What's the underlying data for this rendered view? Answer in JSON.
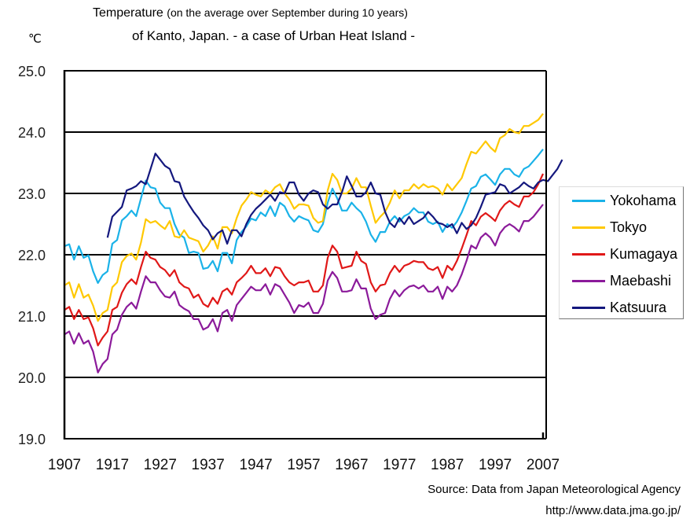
{
  "chart_data": {
    "type": "line",
    "title_main": "Temperature",
    "title_paren": "(on the average over September during 10 years)",
    "title_line2": "of Kanto, Japan. - a case of Urban Heat Island -",
    "ylabel": "℃",
    "xlabel": "",
    "ylim": [
      19.0,
      25.0
    ],
    "xlim": [
      1907,
      2007
    ],
    "yticks": [
      "19.0",
      "20.0",
      "21.0",
      "22.0",
      "23.0",
      "24.0",
      "25.0"
    ],
    "xticks": [
      "1907",
      "1917",
      "1927",
      "1937",
      "1947",
      "1957",
      "1967",
      "1977",
      "1987",
      "1997",
      "2007"
    ],
    "grid": "horizontal",
    "legend_position": "right",
    "source": "Source: Data from Japan Meteorological Agency",
    "url": "http://www.data.jma.go.jp/",
    "series": [
      {
        "name": "Yokohama",
        "color": "#1ab2e8",
        "start_year": 1907,
        "values": [
          22.14,
          22.17,
          21.92,
          22.14,
          21.95,
          21.99,
          21.73,
          21.54,
          21.67,
          21.73,
          22.18,
          22.24,
          22.56,
          22.63,
          22.72,
          22.63,
          22.92,
          23.21,
          23.1,
          23.08,
          22.85,
          22.76,
          22.76,
          22.5,
          22.33,
          22.28,
          22.03,
          22.05,
          22.03,
          21.77,
          21.79,
          21.9,
          21.73,
          22.03,
          22.03,
          21.86,
          22.24,
          22.37,
          22.46,
          22.59,
          22.56,
          22.69,
          22.63,
          22.79,
          22.63,
          22.85,
          22.79,
          22.63,
          22.54,
          22.63,
          22.59,
          22.56,
          22.4,
          22.37,
          22.5,
          22.85,
          23.08,
          22.92,
          22.72,
          22.72,
          22.85,
          22.76,
          22.69,
          22.54,
          22.33,
          22.21,
          22.37,
          22.37,
          22.54,
          22.63,
          22.54,
          22.63,
          22.67,
          22.76,
          22.69,
          22.69,
          22.54,
          22.5,
          22.54,
          22.37,
          22.5,
          22.44,
          22.54,
          22.69,
          22.88,
          23.08,
          23.12,
          23.27,
          23.31,
          23.23,
          23.14,
          23.31,
          23.4,
          23.4,
          23.31,
          23.27,
          23.4,
          23.44,
          23.53,
          23.62,
          23.72
        ]
      },
      {
        "name": "Tokyo",
        "color": "#ffc800",
        "start_year": 1907,
        "values": [
          21.5,
          21.55,
          21.3,
          21.52,
          21.3,
          21.35,
          21.17,
          20.92,
          21.05,
          21.1,
          21.47,
          21.55,
          21.88,
          21.98,
          22.02,
          21.92,
          22.2,
          22.58,
          22.52,
          22.55,
          22.48,
          22.42,
          22.55,
          22.3,
          22.28,
          22.4,
          22.28,
          22.25,
          22.22,
          22.05,
          22.15,
          22.3,
          22.1,
          22.45,
          22.45,
          22.35,
          22.6,
          22.8,
          22.9,
          23.02,
          22.98,
          22.95,
          23.05,
          23.0,
          23.1,
          23.15,
          23.0,
          22.9,
          22.75,
          22.82,
          22.82,
          22.8,
          22.6,
          22.52,
          22.55,
          23.05,
          23.32,
          23.22,
          23.0,
          23.0,
          23.08,
          23.25,
          23.1,
          23.1,
          22.8,
          22.52,
          22.62,
          22.7,
          22.85,
          23.05,
          22.92,
          23.05,
          23.05,
          23.15,
          23.08,
          23.15,
          23.1,
          23.12,
          23.08,
          22.98,
          23.15,
          23.05,
          23.15,
          23.25,
          23.48,
          23.68,
          23.65,
          23.75,
          23.85,
          23.75,
          23.68,
          23.9,
          23.95,
          24.05,
          24.0,
          23.98,
          24.1,
          24.1,
          24.15,
          24.2,
          24.3
        ]
      },
      {
        "name": "Kumagaya",
        "color": "#e01818",
        "start_year": 1907,
        "values": [
          21.1,
          21.15,
          20.95,
          21.1,
          20.95,
          20.98,
          20.8,
          20.52,
          20.65,
          20.75,
          21.1,
          21.15,
          21.38,
          21.52,
          21.6,
          21.52,
          21.8,
          22.05,
          21.95,
          21.92,
          21.8,
          21.75,
          21.65,
          21.75,
          21.55,
          21.48,
          21.45,
          21.3,
          21.35,
          21.2,
          21.15,
          21.3,
          21.2,
          21.4,
          21.45,
          21.35,
          21.55,
          21.62,
          21.7,
          21.82,
          21.7,
          21.7,
          21.78,
          21.65,
          21.8,
          21.78,
          21.65,
          21.55,
          21.5,
          21.55,
          21.55,
          21.58,
          21.4,
          21.4,
          21.5,
          21.95,
          22.15,
          22.05,
          21.78,
          21.8,
          21.82,
          22.05,
          21.9,
          21.85,
          21.55,
          21.4,
          21.5,
          21.52,
          21.7,
          21.82,
          21.72,
          21.82,
          21.85,
          21.9,
          21.88,
          21.88,
          21.78,
          21.75,
          21.8,
          21.62,
          21.82,
          21.75,
          21.9,
          22.1,
          22.32,
          22.55,
          22.48,
          22.62,
          22.68,
          22.62,
          22.55,
          22.72,
          22.82,
          22.88,
          22.82,
          22.78,
          22.95,
          22.95,
          23.02,
          23.15,
          23.32
        ]
      },
      {
        "name": "Maebashi",
        "color": "#8b1a9a",
        "start_year": 1907,
        "values": [
          20.7,
          20.75,
          20.55,
          20.72,
          20.55,
          20.6,
          20.42,
          20.08,
          20.22,
          20.3,
          20.7,
          20.78,
          21.02,
          21.15,
          21.22,
          21.12,
          21.4,
          21.65,
          21.55,
          21.55,
          21.42,
          21.32,
          21.3,
          21.4,
          21.18,
          21.12,
          21.08,
          20.95,
          20.95,
          20.78,
          20.82,
          20.95,
          20.75,
          21.05,
          21.1,
          20.92,
          21.18,
          21.28,
          21.38,
          21.48,
          21.42,
          21.42,
          21.52,
          21.35,
          21.52,
          21.48,
          21.35,
          21.22,
          21.05,
          21.18,
          21.15,
          21.22,
          21.05,
          21.05,
          21.2,
          21.58,
          21.72,
          21.62,
          21.4,
          21.4,
          21.42,
          21.6,
          21.45,
          21.45,
          21.12,
          20.95,
          21.02,
          21.05,
          21.28,
          21.42,
          21.32,
          21.42,
          21.48,
          21.5,
          21.45,
          21.5,
          21.4,
          21.4,
          21.48,
          21.28,
          21.48,
          21.4,
          21.5,
          21.68,
          21.9,
          22.15,
          22.1,
          22.28,
          22.35,
          22.28,
          22.15,
          22.35,
          22.45,
          22.5,
          22.45,
          22.38,
          22.55,
          22.55,
          22.62,
          22.72,
          22.82
        ]
      },
      {
        "name": "Katsuura",
        "color": "#14187e",
        "start_year": 1916,
        "values": [
          22.28,
          22.62,
          22.7,
          22.78,
          23.05,
          23.08,
          23.12,
          23.2,
          23.15,
          23.4,
          23.65,
          23.55,
          23.45,
          23.4,
          23.2,
          23.18,
          22.95,
          22.82,
          22.7,
          22.6,
          22.48,
          22.4,
          22.25,
          22.35,
          22.4,
          22.18,
          22.4,
          22.4,
          22.3,
          22.5,
          22.65,
          22.75,
          22.82,
          22.9,
          22.98,
          22.88,
          23.02,
          23.0,
          23.18,
          23.18,
          22.98,
          22.88,
          23.0,
          23.05,
          23.02,
          22.82,
          22.75,
          22.82,
          22.82,
          23.02,
          23.28,
          23.12,
          22.95,
          22.95,
          23.02,
          23.18,
          23.0,
          22.98,
          22.7,
          22.52,
          22.45,
          22.6,
          22.5,
          22.62,
          22.5,
          22.55,
          22.6,
          22.7,
          22.62,
          22.52,
          22.5,
          22.45,
          22.5,
          22.35,
          22.52,
          22.42,
          22.48,
          22.6,
          22.78,
          22.98,
          23.0,
          23.02,
          23.15,
          23.12,
          23.0,
          23.05,
          23.1,
          23.18,
          23.12,
          23.08,
          23.18,
          23.22,
          23.2,
          23.3,
          23.4,
          23.55
        ]
      }
    ]
  }
}
